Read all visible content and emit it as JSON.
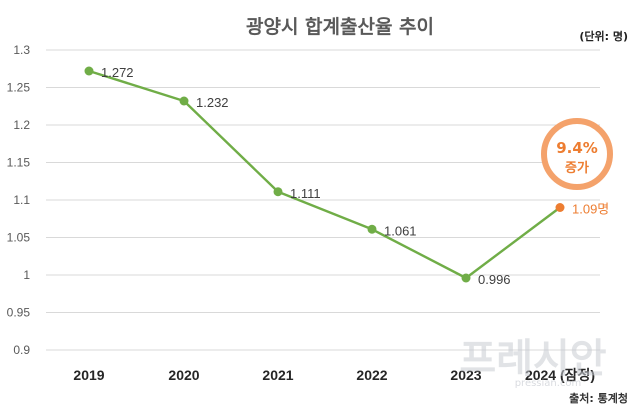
{
  "chart_data": {
    "type": "line",
    "title": "광양시 합계출산율 추이",
    "unit_note": "(단위: 명)",
    "categories": [
      "2019",
      "2020",
      "2021",
      "2022",
      "2023",
      "2024 (잠정)"
    ],
    "series": [
      {
        "values": [
          1.272,
          1.232,
          1.111,
          1.061,
          0.996,
          1.09
        ]
      }
    ],
    "data_labels": [
      "1.272",
      "1.232",
      "1.111",
      "1.061",
      "0.996",
      "1.09명"
    ],
    "y_ticks": [
      "1.3",
      "1.25",
      "1.2",
      "1.15",
      "1.1",
      "1.05",
      "1",
      "0.95",
      "0.9"
    ],
    "ylim": [
      0.9,
      1.3
    ],
    "grid": true,
    "legend": "none",
    "annotation": {
      "value": "9.4%",
      "text": "증가"
    },
    "source": "출처: 통계청",
    "colors": {
      "line": "#70ad47",
      "highlight": "#ed7d31",
      "grid": "#d9d9d9"
    }
  },
  "watermark": {
    "main": "프레시안",
    "sub": "pressian.com"
  }
}
